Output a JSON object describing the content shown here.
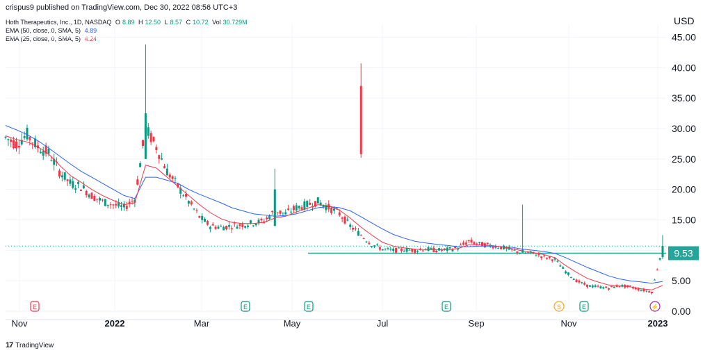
{
  "header": {
    "published": "crispus9 published on TradingView.com, Dec 30, 2022 08:56 UTC+3",
    "currency": "USD"
  },
  "legend": {
    "symbol": "Hoth Therapeutics, Inc., 1D, NASDAQ",
    "ohlc": [
      {
        "key": "O",
        "value": "8.89"
      },
      {
        "key": "H",
        "value": "12.50"
      },
      {
        "key": "L",
        "value": "8.57"
      },
      {
        "key": "C",
        "value": "10.72"
      },
      {
        "key": "Vol",
        "value": "30.729M"
      }
    ],
    "ema50": {
      "label": "EMA (50, close, 0, SMA, 5)",
      "value": "4.89"
    },
    "ema25": {
      "label": "EMA (25, close, 0, SMA, 5)",
      "value": "4.24"
    }
  },
  "brand": {
    "name": "TradingView"
  },
  "colors": {
    "up": "#089981",
    "down": "#f23645",
    "ema50": "#2962ff",
    "ema25": "#f23645",
    "support": "#26a69a",
    "price_tag": "#26a69a",
    "grid": "#f0f3fa"
  },
  "chart_data": {
    "type": "candlestick",
    "ylim": [
      0,
      47
    ],
    "y_ticks": [
      "45.00",
      "40.00",
      "35.00",
      "30.00",
      "25.00",
      "20.00",
      "15.00",
      "10.00",
      "5.00",
      "0.00"
    ],
    "x_ticks": [
      "Nov",
      "2022",
      "Mar",
      "May",
      "Jul",
      "Sep",
      "Nov",
      "2023"
    ],
    "last_price": "9.53",
    "support_level": 9.53,
    "dotted_level": 10.7,
    "events": [
      {
        "month": "Nov",
        "label": "E",
        "color": "#f23645"
      },
      {
        "month": "Apr",
        "label": "E",
        "color": "#089981"
      },
      {
        "month": "May",
        "label": "E",
        "color": "#089981"
      },
      {
        "month": "Aug",
        "label": "E",
        "color": "#089981"
      },
      {
        "month": "Nov",
        "label": "S",
        "color": "#f5a623"
      },
      {
        "month": "Nov",
        "label": "E",
        "color": "#089981"
      },
      {
        "month": "Dec",
        "label": "⚡",
        "color": "#9c27b0"
      }
    ],
    "close_path": [
      28.5,
      27.5,
      29.0,
      27.0,
      26.0,
      23.0,
      21.0,
      20.5,
      19.0,
      18.0,
      17.5,
      17.0,
      18.5,
      30.0,
      27.0,
      23.0,
      20.5,
      18.0,
      15.5,
      14.0,
      13.8,
      14.0,
      14.2,
      14.5,
      14.8,
      16.5,
      16.0,
      17.0,
      17.5,
      18.0,
      17.0,
      16.0,
      14.0,
      12.5,
      11.0,
      10.2,
      10.0,
      10.1,
      10.0,
      10.2,
      10.0,
      10.1,
      10.4,
      11.5,
      11.0,
      10.8,
      10.5,
      10.0,
      9.6,
      9.5,
      8.9,
      8.5,
      6.5,
      5.0,
      4.2,
      4.0,
      3.8,
      4.2,
      4.0,
      3.5,
      3.2,
      10.7
    ],
    "spikes": [
      {
        "t": 13,
        "high": 43.8,
        "low": 25,
        "open": 25,
        "close": 32.5
      },
      {
        "t": 33,
        "high": 40.7,
        "low": 25.2,
        "open": 37,
        "close": 25.8
      },
      {
        "t": 25,
        "high": 23.4,
        "low": 14,
        "open": 14,
        "close": 20
      },
      {
        "t": 48,
        "high": 17.5,
        "low": 9.8,
        "open": 9.9,
        "close": 10.1
      },
      {
        "t": 61,
        "high": 12.5,
        "low": 8.57,
        "open": 8.89,
        "close": 10.72
      }
    ],
    "ema50_path": [
      30.5,
      29.8,
      29.0,
      28.0,
      26.8,
      25.5,
      24.2,
      23.0,
      22.0,
      21.0,
      20.0,
      19.0,
      18.5,
      22.0,
      22.0,
      21.5,
      21.0,
      20.0,
      19.2,
      18.5,
      17.8,
      17.0,
      16.5,
      16.0,
      15.8,
      15.6,
      15.7,
      16.0,
      16.5,
      17.0,
      17.2,
      17.0,
      16.5,
      15.5,
      14.5,
      13.5,
      12.6,
      12.0,
      11.5,
      11.2,
      11.0,
      10.8,
      10.6,
      10.6,
      10.7,
      10.7,
      10.6,
      10.5,
      10.2,
      10.0,
      9.8,
      9.5,
      8.8,
      8.0,
      7.2,
      6.5,
      5.8,
      5.3,
      5.0,
      4.8,
      4.6,
      4.89
    ],
    "ema25_path": [
      28.8,
      28.2,
      27.8,
      27.0,
      25.8,
      24.0,
      22.3,
      21.2,
      20.0,
      19.0,
      18.2,
      17.5,
      17.8,
      24.0,
      23.5,
      22.0,
      20.5,
      19.0,
      17.5,
      16.2,
      15.2,
      14.6,
      14.4,
      14.4,
      14.6,
      15.3,
      15.6,
      16.3,
      16.9,
      17.5,
      17.3,
      16.6,
      15.3,
      13.8,
      12.5,
      11.3,
      10.7,
      10.4,
      10.2,
      10.1,
      10.1,
      10.1,
      10.3,
      10.9,
      10.9,
      10.8,
      10.6,
      10.3,
      9.9,
      9.6,
      9.3,
      8.8,
      7.5,
      6.4,
      5.4,
      4.8,
      4.3,
      4.2,
      4.0,
      3.7,
      3.5,
      4.24
    ]
  }
}
